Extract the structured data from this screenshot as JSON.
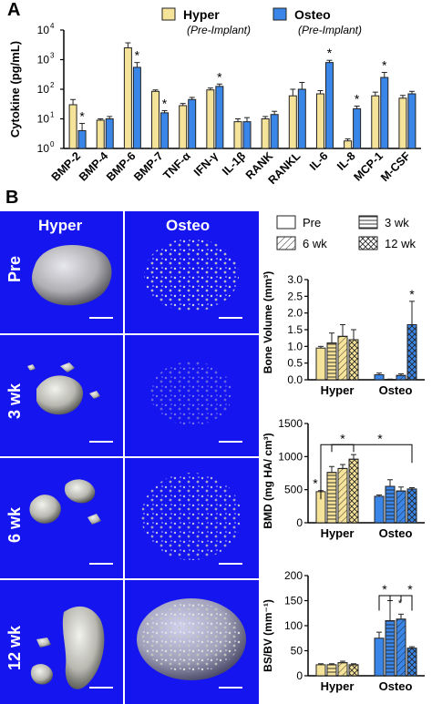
{
  "panels": {
    "a": "A",
    "b": "B"
  },
  "colors": {
    "hyper": "#f6e39a",
    "osteo": "#3a86e8",
    "bar_stroke": "#222222",
    "image_bg": "#1515ef"
  },
  "legend_top": {
    "hyper_label": "Hyper",
    "hyper_sub": "(Pre-Implant)",
    "osteo_label": "Osteo",
    "osteo_sub": "(Pre-Implant)"
  },
  "legend_bottom": [
    "Pre",
    "3 wk",
    "6 wk",
    "12 wk"
  ],
  "image_grid": {
    "col_headers": [
      "Hyper",
      "Osteo"
    ],
    "row_labels": [
      "Pre",
      "3 wk",
      "6 wk",
      "12 wk"
    ],
    "image_description_icons": [
      "bone-render-icon"
    ]
  },
  "chart_data": [
    {
      "type": "bar",
      "id": "cytokine",
      "ylabel": "Cytokine (pg/mL)",
      "yscale": "log",
      "ylim": [
        1,
        10000
      ],
      "yticks": [
        1,
        10,
        100,
        1000,
        10000
      ],
      "yticklabels": [
        "10",
        "10",
        "10",
        "10",
        "10"
      ],
      "ytick_exponents": [
        "0",
        "1",
        "2",
        "3",
        "4"
      ],
      "categories": [
        "BMP-2",
        "BMP-4",
        "BMP-6",
        "BMP-7",
        "TNF-α",
        "IFN-γ",
        "IL-1β",
        "RANK",
        "RANKL",
        "IL-6",
        "IL-8",
        "MCP-1",
        "M-CSF"
      ],
      "series": [
        {
          "name": "Hyper",
          "values": [
            30,
            9,
            2500,
            85,
            28,
            95,
            8,
            10,
            60,
            70,
            1.8,
            60,
            50
          ],
          "errors": [
            15,
            1,
            1200,
            10,
            5,
            15,
            2,
            2,
            40,
            20,
            0.3,
            20,
            12
          ]
        },
        {
          "name": "Osteo",
          "values": [
            4,
            10,
            550,
            16,
            45,
            125,
            8,
            14,
            100,
            800,
            22,
            250,
            70
          ],
          "errors": [
            3,
            2,
            250,
            3,
            8,
            25,
            3,
            4,
            70,
            150,
            5,
            120,
            15
          ]
        }
      ],
      "significance": [
        "*",
        "",
        "*",
        "*",
        "",
        "*",
        "",
        "",
        "",
        "*",
        "*",
        "*",
        ""
      ]
    },
    {
      "type": "bar",
      "id": "bone-volume",
      "ylabel": "Bone Volume (mm³)",
      "ylim": [
        0,
        3.0
      ],
      "yticks": [
        "0.0",
        "0.5",
        "1.0",
        "1.5",
        "2.0",
        "2.5",
        "3.0"
      ],
      "categories": [
        "Hyper",
        "Osteo"
      ],
      "series": [
        {
          "name": "Pre",
          "values": [
            0.95,
            0.15
          ],
          "errors": [
            0.05,
            0.05
          ]
        },
        {
          "name": "3 wk",
          "values": [
            1.1,
            0.01
          ],
          "errors": [
            0.3,
            0.01
          ]
        },
        {
          "name": "6 wk",
          "values": [
            1.3,
            0.13
          ],
          "errors": [
            0.35,
            0.05
          ]
        },
        {
          "name": "12 wk",
          "values": [
            1.2,
            1.65
          ],
          "errors": [
            0.3,
            0.7
          ]
        }
      ],
      "annotations": [
        "*"
      ]
    },
    {
      "type": "bar",
      "id": "bmd",
      "ylabel": "BMD (mg HA/ cm³)",
      "ylim": [
        0,
        1500
      ],
      "yticks": [
        "0",
        "500",
        "1000",
        "1500"
      ],
      "categories": [
        "Hyper",
        "Osteo"
      ],
      "series": [
        {
          "name": "Pre",
          "values": [
            470,
            400
          ],
          "errors": [
            15,
            20
          ]
        },
        {
          "name": "3 wk",
          "values": [
            760,
            550
          ],
          "errors": [
            90,
            100
          ]
        },
        {
          "name": "6 wk",
          "values": [
            820,
            480
          ],
          "errors": [
            60,
            60
          ]
        },
        {
          "name": "12 wk",
          "values": [
            960,
            510
          ],
          "errors": [
            70,
            20
          ]
        }
      ],
      "annotations": [
        "*",
        "*",
        "*"
      ]
    },
    {
      "type": "bar",
      "id": "bsbv",
      "ylabel": "BS/BV (mm⁻¹)",
      "ylim": [
        0,
        200
      ],
      "yticks": [
        "0",
        "50",
        "100",
        "150",
        "200"
      ],
      "categories": [
        "Hyper",
        "Osteo"
      ],
      "series": [
        {
          "name": "Pre",
          "values": [
            22,
            75
          ],
          "errors": [
            2,
            12
          ]
        },
        {
          "name": "3 wk",
          "values": [
            22,
            110
          ],
          "errors": [
            2,
            40
          ]
        },
        {
          "name": "6 wk",
          "values": [
            26,
            113
          ],
          "errors": [
            3,
            10
          ]
        },
        {
          "name": "12 wk",
          "values": [
            22,
            55
          ],
          "errors": [
            2,
            3
          ]
        }
      ],
      "annotations": [
        "*",
        "*",
        "*"
      ]
    }
  ]
}
